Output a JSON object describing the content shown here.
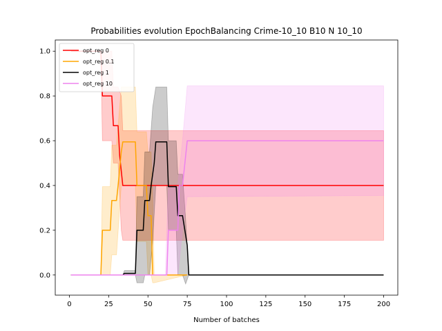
{
  "chart_data": {
    "type": "line",
    "title": "Probabilities evolution EpochBalancing Crime-10_10 B10 N 10_10",
    "xlabel": "Number of batches",
    "ylabel": "",
    "xlim": [
      -9,
      209
    ],
    "ylim": [
      -0.09,
      1.05
    ],
    "xticks": [
      0,
      25,
      50,
      75,
      100,
      125,
      150,
      175,
      200
    ],
    "yticks": [
      0.0,
      0.2,
      0.4,
      0.6,
      0.8,
      1.0
    ],
    "grid": false,
    "legend_position": "top-left",
    "series": [
      {
        "name": "opt_reg 0",
        "color": "#ff0000",
        "points": [
          [
            1,
            1.0
          ],
          [
            20,
            1.0
          ],
          [
            21,
            0.8
          ],
          [
            27,
            0.8
          ],
          [
            28,
            0.667
          ],
          [
            31,
            0.667
          ],
          [
            32,
            0.533
          ],
          [
            34,
            0.4
          ],
          [
            200,
            0.4
          ]
        ],
        "band": [
          [
            20,
            1.0,
            1.0
          ],
          [
            21,
            0.6,
            1.0
          ],
          [
            27,
            0.6,
            1.0
          ],
          [
            28,
            0.5,
            0.84
          ],
          [
            31,
            0.5,
            0.84
          ],
          [
            33,
            0.2,
            0.8
          ],
          [
            34,
            0.155,
            0.645
          ],
          [
            200,
            0.155,
            0.645
          ]
        ]
      },
      {
        "name": "opt_reg 0.1",
        "color": "#ffa500",
        "points": [
          [
            1,
            0.0
          ],
          [
            20,
            0.0
          ],
          [
            21,
            0.2
          ],
          [
            26,
            0.2
          ],
          [
            27,
            0.333
          ],
          [
            30,
            0.333
          ],
          [
            31,
            0.4
          ],
          [
            33,
            0.55
          ],
          [
            34,
            0.595
          ],
          [
            42,
            0.595
          ],
          [
            43,
            0.4
          ],
          [
            49,
            0.4
          ],
          [
            50,
            0.265
          ],
          [
            52,
            0.265
          ],
          [
            53,
            0.0
          ],
          [
            54,
            0.0
          ],
          [
            55,
            0.0
          ],
          [
            75,
            0.0
          ]
        ],
        "band": [
          [
            20,
            0.0,
            0.0
          ],
          [
            21,
            0.0,
            0.395
          ],
          [
            26,
            0.0,
            0.395
          ],
          [
            27,
            0.09,
            0.58
          ],
          [
            30,
            0.09,
            0.58
          ],
          [
            33,
            0.4,
            0.84
          ],
          [
            42,
            0.4,
            0.84
          ],
          [
            43,
            0.15,
            0.64
          ],
          [
            49,
            0.15,
            0.64
          ],
          [
            50,
            0.0,
            0.55
          ],
          [
            52,
            0.0,
            0.55
          ],
          [
            53,
            -0.035,
            0.35
          ],
          [
            54,
            -0.035,
            0.0
          ],
          [
            75,
            0.0,
            0.0
          ]
        ]
      },
      {
        "name": "opt_reg 1",
        "color": "#000000",
        "points": [
          [
            1,
            0.0
          ],
          [
            34,
            0.0
          ],
          [
            35,
            0.007
          ],
          [
            42,
            0.007
          ],
          [
            43,
            0.2
          ],
          [
            47,
            0.2
          ],
          [
            48,
            0.333
          ],
          [
            51,
            0.333
          ],
          [
            52,
            0.4
          ],
          [
            54,
            0.5
          ],
          [
            55,
            0.595
          ],
          [
            62,
            0.595
          ],
          [
            63,
            0.395
          ],
          [
            68,
            0.395
          ],
          [
            69,
            0.265
          ],
          [
            72,
            0.265
          ],
          [
            75,
            0.133
          ],
          [
            76,
            0.0
          ],
          [
            200,
            0.0
          ]
        ],
        "band": [
          [
            34,
            0.0,
            0.0
          ],
          [
            35,
            0.0,
            0.02
          ],
          [
            42,
            0.0,
            0.02
          ],
          [
            43,
            -0.035,
            0.35
          ],
          [
            47,
            -0.035,
            0.35
          ],
          [
            48,
            0.0,
            0.55
          ],
          [
            51,
            0.0,
            0.55
          ],
          [
            53,
            0.15,
            0.75
          ],
          [
            55,
            0.4,
            0.84
          ],
          [
            62,
            0.4,
            0.84
          ],
          [
            63,
            0.2,
            0.6
          ],
          [
            68,
            0.2,
            0.6
          ],
          [
            69,
            0.0,
            0.45
          ],
          [
            72,
            0.0,
            0.45
          ],
          [
            74,
            -0.04,
            0.25
          ],
          [
            76,
            0.0,
            0.0
          ]
        ]
      },
      {
        "name": "opt_reg 10",
        "color": "#ee82ee",
        "points": [
          [
            1,
            0.0
          ],
          [
            61,
            0.0
          ],
          [
            62,
            0.0
          ],
          [
            63,
            0.2
          ],
          [
            69,
            0.2
          ],
          [
            70,
            0.4
          ],
          [
            72,
            0.4
          ],
          [
            75,
            0.6
          ],
          [
            200,
            0.6
          ]
        ],
        "band": [
          [
            61,
            0.0,
            0.0
          ],
          [
            63,
            0.0,
            0.4
          ],
          [
            69,
            0.0,
            0.4
          ],
          [
            72,
            0.2,
            0.6
          ],
          [
            75,
            0.35,
            0.845
          ],
          [
            200,
            0.355,
            0.845
          ]
        ]
      }
    ]
  }
}
